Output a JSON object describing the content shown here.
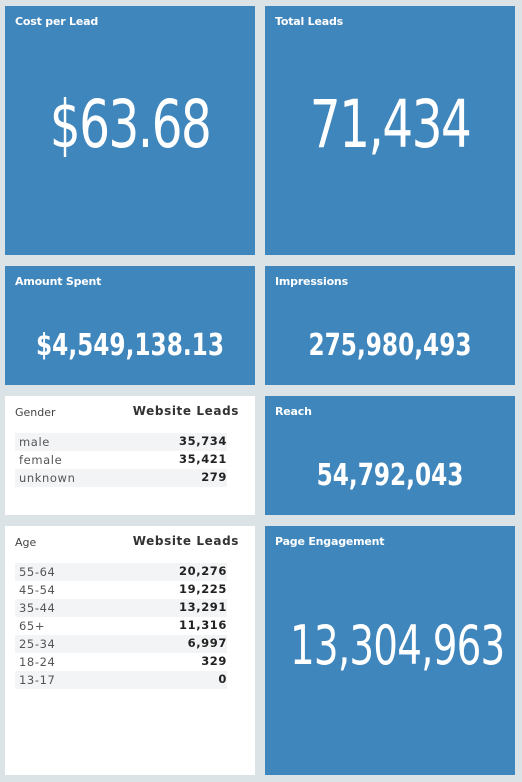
{
  "tiles": {
    "cost_per_lead": {
      "title": "Cost per Lead",
      "value": "$63.68"
    },
    "total_leads": {
      "title": "Total Leads",
      "value": "71,434"
    },
    "amount_spent": {
      "title": "Amount Spent",
      "value": "$4,549,138.13"
    },
    "impressions": {
      "title": "Impressions",
      "value": "275,980,493"
    },
    "reach": {
      "title": "Reach",
      "value": "54,792,043"
    },
    "page_engagement": {
      "title": "Page Engagement",
      "value": "13,304,963"
    }
  },
  "gender_table": {
    "dimension_header": "Gender",
    "metric_header": "Website Leads",
    "rows": [
      {
        "label": "male",
        "value": "35,734"
      },
      {
        "label": "female",
        "value": "35,421"
      },
      {
        "label": "unknown",
        "value": "279"
      }
    ]
  },
  "age_table": {
    "dimension_header": "Age",
    "metric_header": "Website Leads",
    "rows": [
      {
        "label": "55-64",
        "value": "20,276"
      },
      {
        "label": "45-54",
        "value": "19,225"
      },
      {
        "label": "35-44",
        "value": "13,291"
      },
      {
        "label": "65+",
        "value": "11,316"
      },
      {
        "label": "25-34",
        "value": "6,997"
      },
      {
        "label": "18-24",
        "value": "329"
      },
      {
        "label": "13-17",
        "value": "0"
      }
    ]
  },
  "colors": {
    "tile_blue": "#3f86bc",
    "background": "#dce3e7",
    "table_bg": "#ffffff",
    "row_alt": "#f3f4f5"
  }
}
